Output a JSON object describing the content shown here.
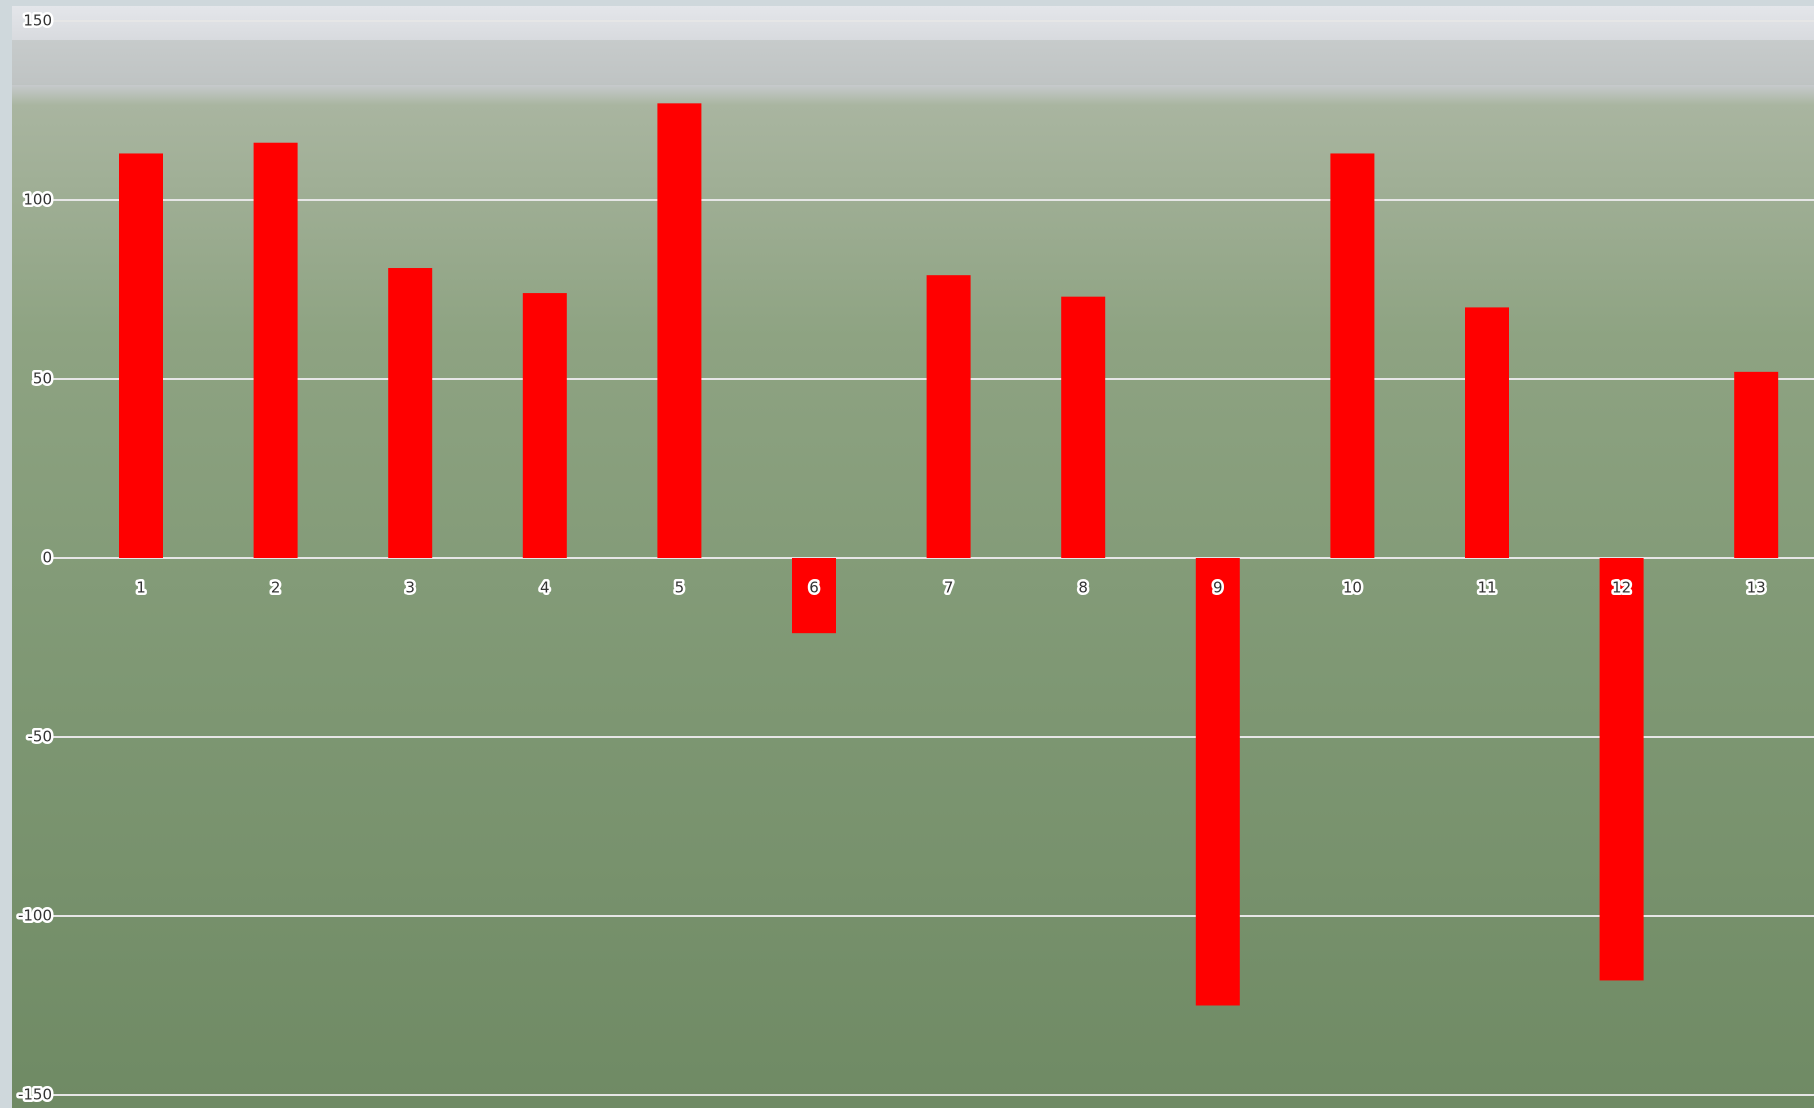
{
  "chart_data": {
    "type": "bar",
    "categories": [
      "1",
      "2",
      "3",
      "4",
      "5",
      "6",
      "7",
      "8",
      "9",
      "10",
      "11",
      "12",
      "13"
    ],
    "values": [
      113,
      116,
      81,
      74,
      127,
      -21,
      79,
      73,
      -125,
      113,
      70,
      -118,
      52
    ],
    "color": "#ff0000",
    "ylim": [
      -150,
      150
    ],
    "yticks": [
      -150,
      -100,
      -50,
      0,
      50,
      100,
      150
    ],
    "grid": true
  }
}
